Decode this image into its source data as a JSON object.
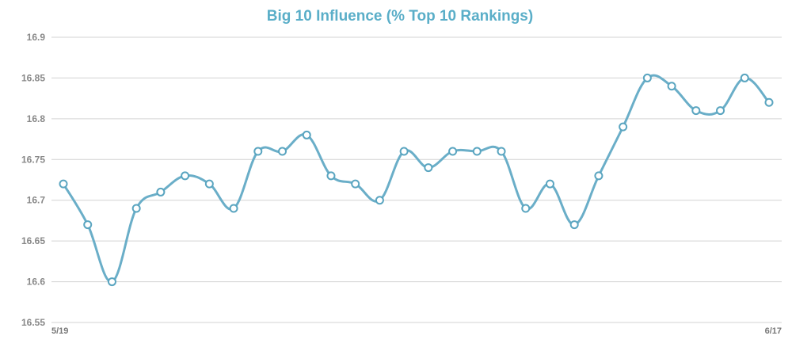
{
  "chart_data": {
    "type": "line",
    "title": "Big 10 Influence (% Top 10 Rankings)",
    "xlabel": "",
    "ylabel": "",
    "x_tick_labels": [
      "5/19",
      "6/17"
    ],
    "y_ticks": [
      "16.55",
      "16.6",
      "16.65",
      "16.7",
      "16.75",
      "16.8",
      "16.85",
      "16.9"
    ],
    "ylim": [
      16.55,
      16.9
    ],
    "grid": true,
    "series": [
      {
        "values": [
          16.72,
          16.67,
          16.6,
          16.69,
          16.71,
          16.73,
          16.72,
          16.69,
          16.76,
          16.76,
          16.78,
          16.73,
          16.72,
          16.7,
          16.76,
          16.74,
          16.76,
          16.76,
          16.76,
          16.69,
          16.72,
          16.67,
          16.73,
          16.79,
          16.85,
          16.84,
          16.81,
          16.81,
          16.85,
          16.82
        ]
      }
    ],
    "colors": {
      "title": "#5aaec8",
      "line": "#6aaec8",
      "marker_stroke": "#5aa5c0",
      "grid": "#d3d3d3"
    }
  }
}
